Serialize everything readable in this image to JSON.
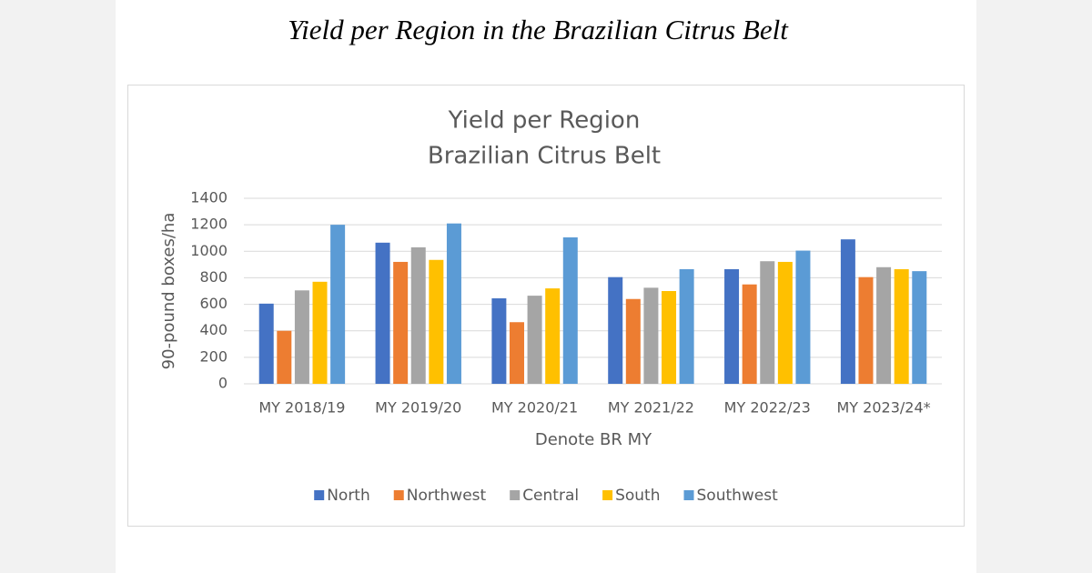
{
  "heading": "Yield per Region in the Brazilian Citrus Belt",
  "chart_data": {
    "type": "bar",
    "title": "Yield per Region",
    "subtitle": "Brazilian Citrus Belt",
    "y_label": "90-pound boxes/ha",
    "x_label": "Denote BR MY",
    "categories": [
      "MY 2018/19",
      "MY 2019/20",
      "MY 2020/21",
      "MY 2021/22",
      "MY 2022/23",
      "MY 2023/24*"
    ],
    "series": [
      {
        "name": "North",
        "color": "#4472c4",
        "values": [
          605,
          1065,
          645,
          805,
          865,
          1090
        ]
      },
      {
        "name": "Northwest",
        "color": "#ed7d31",
        "values": [
          400,
          920,
          465,
          640,
          750,
          805
        ]
      },
      {
        "name": "Central",
        "color": "#a5a5a5",
        "values": [
          705,
          1030,
          665,
          725,
          925,
          880
        ]
      },
      {
        "name": "South",
        "color": "#ffc000",
        "values": [
          770,
          935,
          720,
          700,
          920,
          865
        ]
      },
      {
        "name": "Southwest",
        "color": "#5b9bd5",
        "values": [
          1200,
          1210,
          1105,
          865,
          1005,
          850
        ]
      }
    ],
    "ylim": [
      0,
      1400
    ],
    "yticks": [
      0,
      200,
      400,
      600,
      800,
      1000,
      1200,
      1400
    ],
    "grid": true,
    "legend": "bottom"
  }
}
